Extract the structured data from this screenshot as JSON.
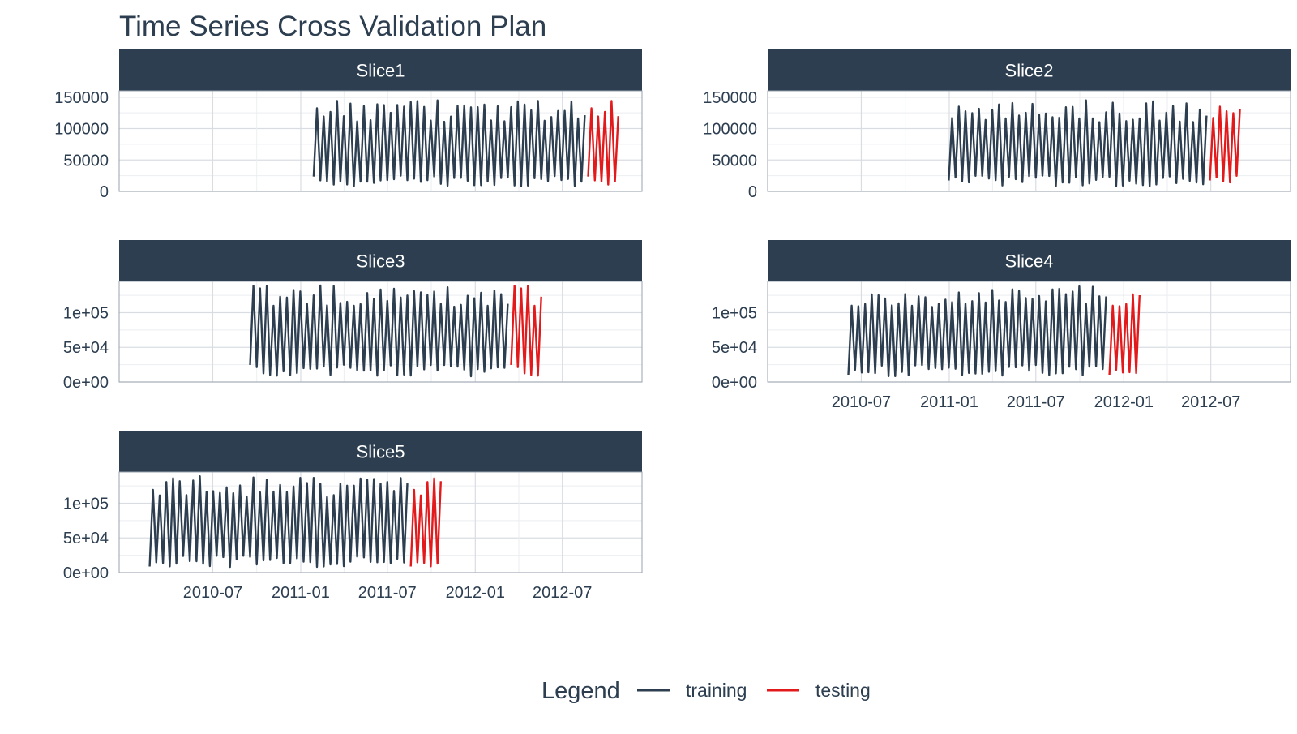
{
  "chart_data": {
    "type": "line",
    "title": "Time Series Cross Validation Plan",
    "legend": {
      "title": "Legend",
      "position": "bottom",
      "entries": [
        {
          "label": "training",
          "color": "#2c3e50"
        },
        {
          "label": "testing",
          "color": "#e31a1c"
        }
      ]
    },
    "colors": {
      "training": "#2c3e50",
      "testing": "#e31a1c",
      "strip_bg": "#2c3e50",
      "strip_text": "#ffffff",
      "grid": "#d9dde2",
      "text": "#2c3e50"
    },
    "x_range": [
      "2010-02-05",
      "2012-10-26"
    ],
    "x_ticks": [
      "2010-07",
      "2011-01",
      "2011-07",
      "2012-01",
      "2012-07"
    ],
    "x_tick_dates": [
      "2010-07-01",
      "2011-01-01",
      "2011-07-01",
      "2012-01-01",
      "2012-07-01"
    ],
    "grid": true,
    "panels": [
      {
        "label": "Slice1",
        "ylim": [
          0,
          160000
        ],
        "y_ticks": [
          0,
          50000,
          100000,
          150000
        ],
        "y_tick_labels": [
          "0",
          "50000",
          "100000",
          "150000"
        ],
        "show_x_axis": false,
        "training": {
          "start": "2011-01-28",
          "end": "2012-08-17"
        },
        "testing": {
          "start": "2012-08-24",
          "end": "2012-10-26"
        },
        "y_low": [
          8000,
          25000
        ],
        "y_high": [
          110000,
          145000
        ]
      },
      {
        "label": "Slice2",
        "ylim": [
          0,
          160000
        ],
        "y_ticks": [
          0,
          50000,
          100000,
          150000
        ],
        "y_tick_labels": [
          "0",
          "50000",
          "100000",
          "150000"
        ],
        "show_x_axis": false,
        "training": {
          "start": "2010-12-31",
          "end": "2012-06-22"
        },
        "testing": {
          "start": "2012-06-29",
          "end": "2012-08-31"
        },
        "y_low": [
          8000,
          25000
        ],
        "y_high": [
          110000,
          145000
        ]
      },
      {
        "label": "Slice3",
        "ylim": [
          0,
          145000
        ],
        "y_ticks": [
          0,
          50000,
          100000
        ],
        "y_tick_labels": [
          "0e+00",
          "5e+04",
          "1e+05"
        ],
        "show_x_axis": false,
        "training": {
          "start": "2010-09-17",
          "end": "2012-03-09"
        },
        "testing": {
          "start": "2012-03-16",
          "end": "2012-05-18"
        },
        "y_low": [
          8000,
          25000
        ],
        "y_high": [
          108000,
          140000
        ]
      },
      {
        "label": "Slice4",
        "ylim": [
          0,
          145000
        ],
        "y_ticks": [
          0,
          50000,
          100000
        ],
        "y_tick_labels": [
          "0e+00",
          "5e+04",
          "1e+05"
        ],
        "show_x_axis": true,
        "training": {
          "start": "2010-06-04",
          "end": "2011-11-25"
        },
        "testing": {
          "start": "2011-12-02",
          "end": "2012-02-03"
        },
        "y_low": [
          8000,
          25000
        ],
        "y_high": [
          108000,
          140000
        ]
      },
      {
        "label": "Slice5",
        "ylim": [
          0,
          145000
        ],
        "y_ticks": [
          0,
          50000,
          100000
        ],
        "y_tick_labels": [
          "0e+00",
          "5e+04",
          "1e+05"
        ],
        "show_x_axis": true,
        "training": {
          "start": "2010-02-19",
          "end": "2011-08-12"
        },
        "testing": {
          "start": "2011-08-19",
          "end": "2011-10-21"
        },
        "y_low": [
          8000,
          25000
        ],
        "y_high": [
          108000,
          140000
        ]
      }
    ]
  }
}
